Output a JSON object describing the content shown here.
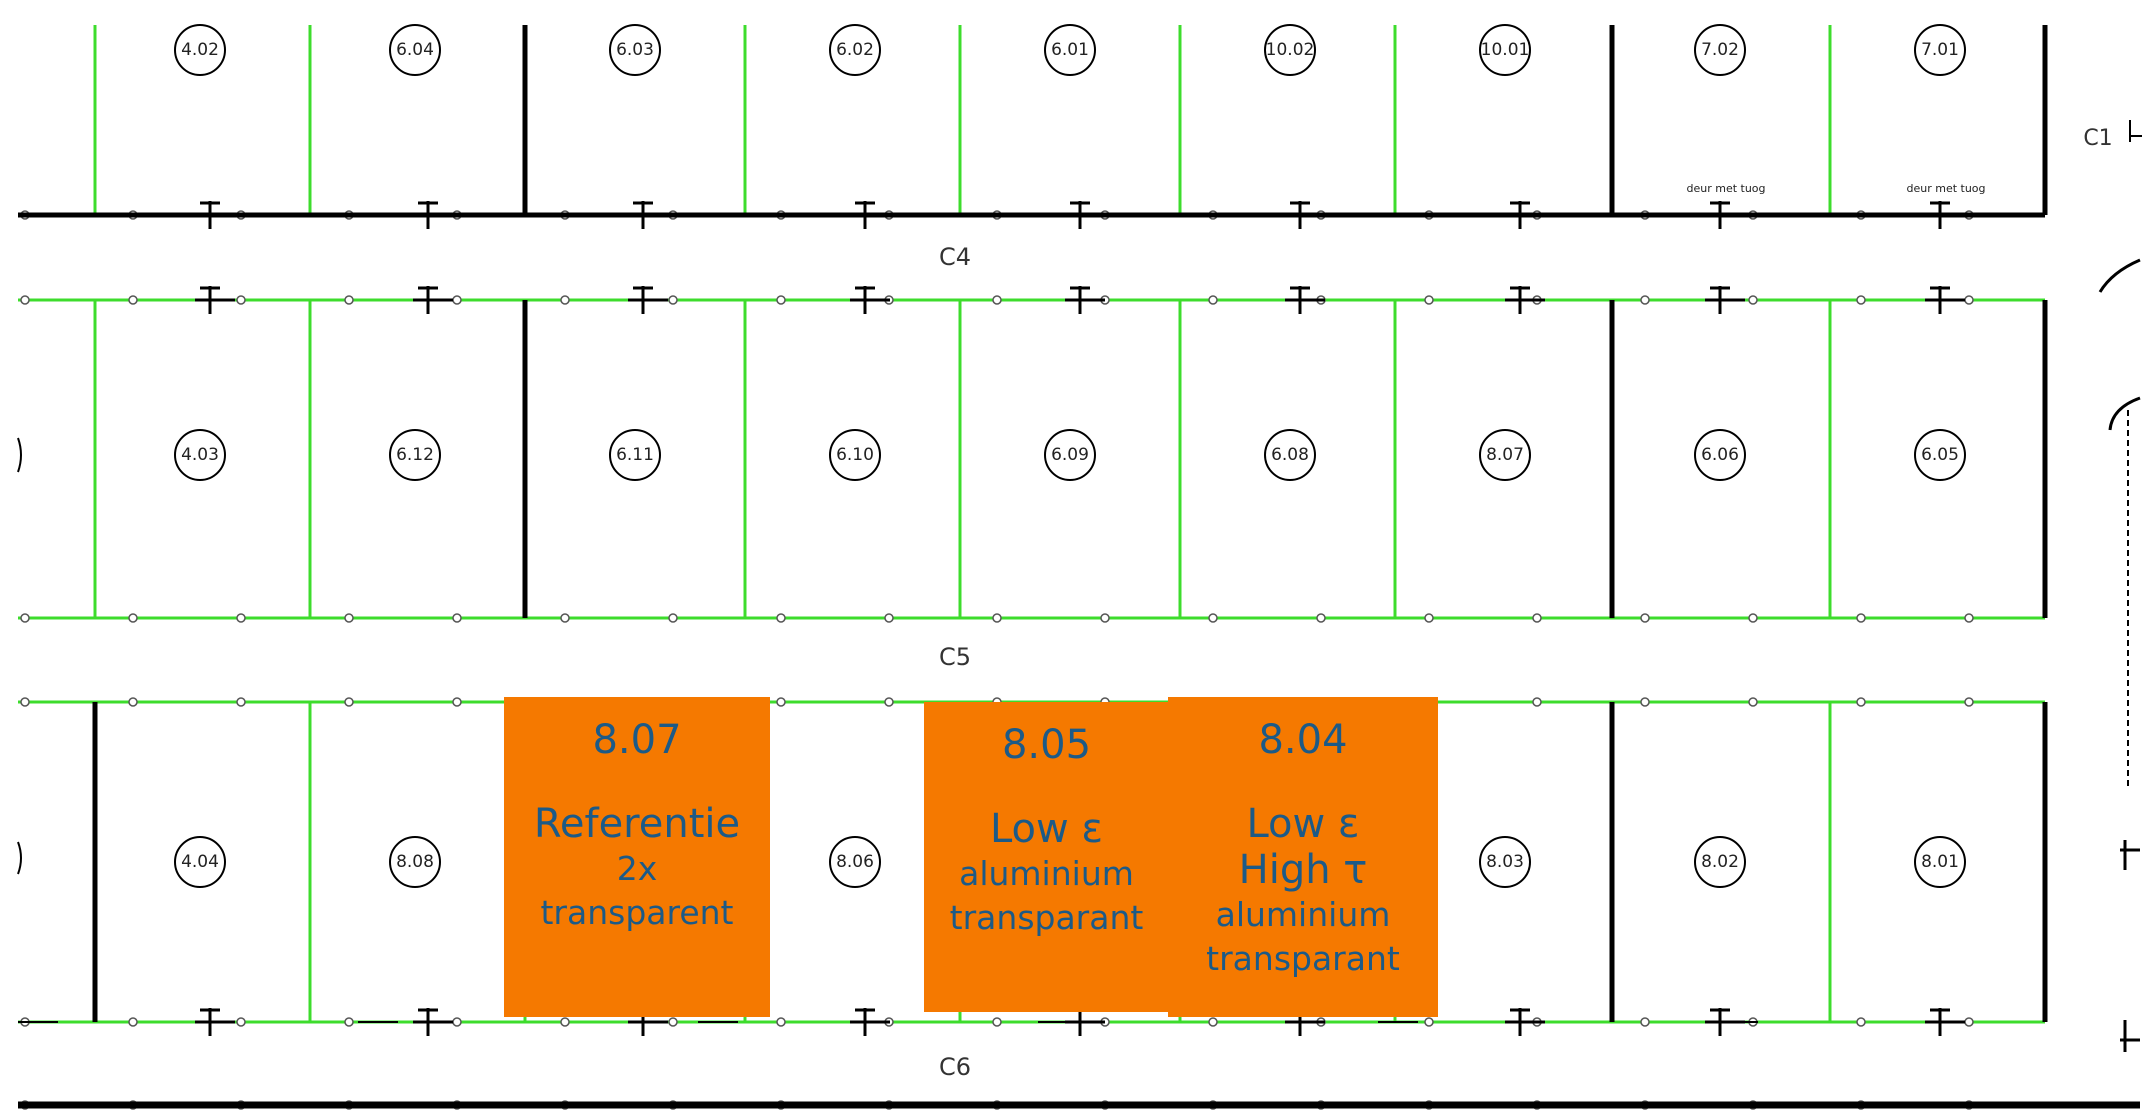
{
  "corridors": {
    "c1": "C1",
    "c4": "C4",
    "c5": "C5",
    "c6": "C6"
  },
  "door_notes": {
    "note_1": "deur met tuog",
    "note_2": "deur met tuog"
  },
  "rooms": {
    "row1": [
      "4.02",
      "6.04",
      "6.03",
      "6.02",
      "6.01",
      "10.02",
      "10.01",
      "7.02",
      "7.01"
    ],
    "row2": [
      "4.03",
      "6.12",
      "6.11",
      "6.10",
      "6.09",
      "6.08",
      "8.07",
      "6.06",
      "6.05"
    ],
    "row3": [
      "4.04",
      "8.08",
      "8.06",
      "8.03",
      "8.02",
      "8.01"
    ]
  },
  "annotations": [
    {
      "number": "8.07",
      "line1": "Referentie",
      "line2": "2x",
      "line3": "transparent",
      "line4": ""
    },
    {
      "number": "8.05",
      "line1": "Low ε",
      "line2": "aluminium",
      "line3": "transparant",
      "line4": ""
    },
    {
      "number": "8.04",
      "line1": "Low ε",
      "line2": "High τ",
      "line3": "aluminium",
      "line4": "transparant"
    }
  ],
  "colors": {
    "wall_green": "#3ddc2c",
    "wall_black": "#000000",
    "highlight": "#f57900",
    "highlight_text": "#1c5a87"
  }
}
